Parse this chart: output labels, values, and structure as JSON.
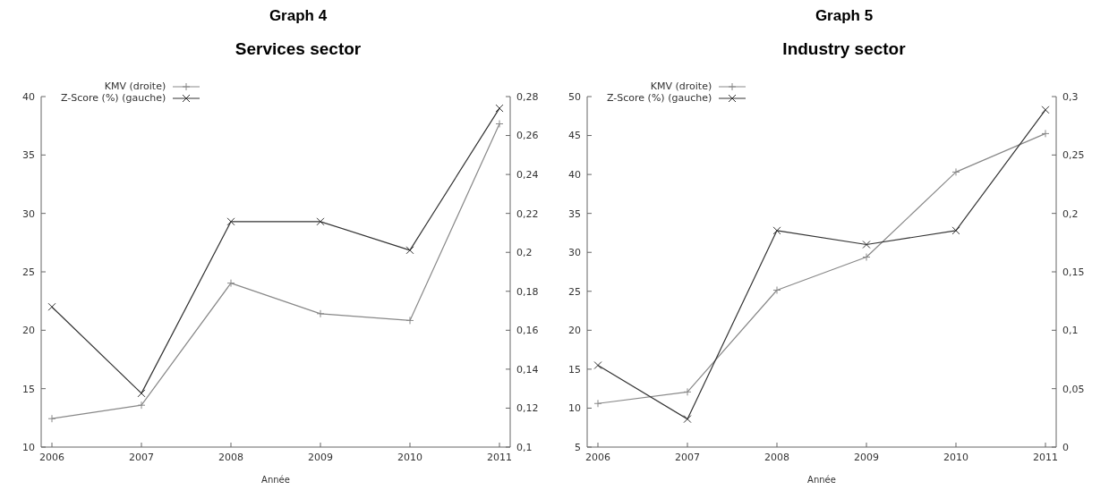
{
  "chart_data": [
    {
      "type": "line",
      "title": "Graph 4",
      "subtitle": "Services sector",
      "xlabel": "Année",
      "categories": [
        "2006",
        "2007",
        "2008",
        "2009",
        "2010",
        "2011"
      ],
      "series": [
        {
          "name": "KMV (droite)",
          "color": "#888888",
          "marker": "plus",
          "axis": "y2",
          "values": [
            0.1146,
            0.1215,
            0.1842,
            0.1685,
            0.165,
            0.266
          ]
        },
        {
          "name": "Z-Score (%) (gauche)",
          "color": "#333333",
          "marker": "cross",
          "values": [
            22.0,
            14.6,
            29.3,
            29.3,
            26.85,
            39.0
          ]
        }
      ],
      "ylim": [
        10,
        40
      ],
      "yticks": [
        10,
        15,
        20,
        25,
        30,
        35,
        40
      ],
      "y2lim": [
        0.1,
        0.28
      ],
      "y2ticks": [
        {
          "value": 0.1,
          "label": "0,1"
        },
        {
          "value": 0.12,
          "label": "0,12"
        },
        {
          "value": 0.14,
          "label": "0,14"
        },
        {
          "value": 0.16,
          "label": "0,16"
        },
        {
          "value": 0.18,
          "label": "0,18"
        },
        {
          "value": 0.2,
          "label": "0,2"
        },
        {
          "value": 0.22,
          "label": "0,22"
        },
        {
          "value": 0.24,
          "label": "0,24"
        },
        {
          "value": 0.26,
          "label": "0,26"
        },
        {
          "value": 0.28,
          "label": "0,28"
        }
      ],
      "legend": "top left",
      "grid": false,
      "line_style": "solid"
    },
    {
      "type": "line",
      "title": "Graph 5",
      "subtitle": "Industry sector",
      "xlabel": "Année",
      "categories": [
        "2006",
        "2007",
        "2008",
        "2009",
        "2010",
        "2011"
      ],
      "series": [
        {
          "name": "KMV (droite)",
          "color": "#888888",
          "marker": "plus",
          "axis": "y2",
          "values": [
            0.0373,
            0.0472,
            0.1343,
            0.1626,
            0.2354,
            0.2683
          ]
        },
        {
          "name": "Z-Score (%) (gauche)",
          "color": "#333333",
          "marker": "cross",
          "values": [
            15.5,
            8.6,
            32.8,
            31.0,
            32.8,
            48.3
          ]
        }
      ],
      "ylim": [
        5,
        50
      ],
      "yticks": [
        5,
        10,
        15,
        20,
        25,
        30,
        35,
        40,
        45,
        50
      ],
      "y2lim": [
        0,
        0.3
      ],
      "y2ticks": [
        0,
        {
          "value": 0.05,
          "label": "0,05"
        },
        {
          "value": 0.1,
          "label": "0,1"
        },
        {
          "value": 0.15,
          "label": "0,15"
        },
        {
          "value": 0.2,
          "label": "0,2"
        },
        {
          "value": 0.25,
          "label": "0,25"
        },
        {
          "value": 0.3,
          "label": "0,3"
        }
      ],
      "legend": "top left",
      "grid": false,
      "line_style": "solid"
    }
  ]
}
